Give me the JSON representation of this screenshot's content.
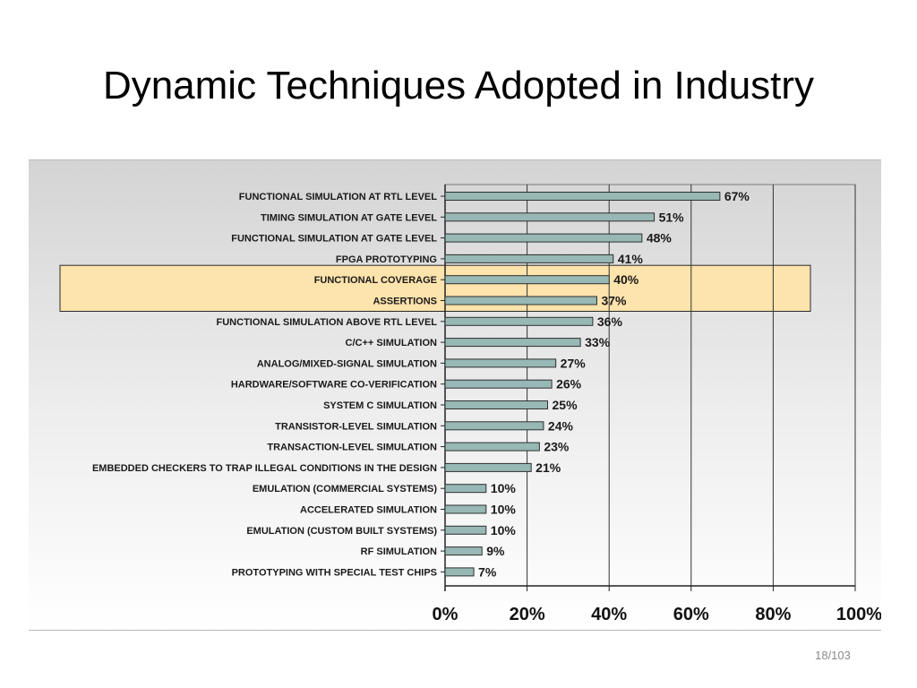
{
  "slide": {
    "title": "Dynamic Techniques Adopted in Industry",
    "page_number": "18/103"
  },
  "colors": {
    "bar_fill": "#97b8b4",
    "bar_stroke": "#2f2f2f",
    "highlight": "#fde3ac",
    "highlight_border": "#2a2a2a",
    "gridline": "#333333"
  },
  "chart_data": {
    "type": "bar",
    "orientation": "horizontal",
    "categories": [
      "FUNCTIONAL SIMULATION AT RTL LEVEL",
      "TIMING SIMULATION AT GATE LEVEL",
      "FUNCTIONAL SIMULATION AT GATE LEVEL",
      "FPGA PROTOTYPING",
      "FUNCTIONAL COVERAGE",
      "ASSERTIONS",
      "FUNCTIONAL SIMULATION ABOVE RTL LEVEL",
      "C/C++ SIMULATION",
      "ANALOG/MIXED-SIGNAL SIMULATION",
      "HARDWARE/SOFTWARE CO-VERIFICATION",
      "SYSTEM C SIMULATION",
      "TRANSISTOR-LEVEL SIMULATION",
      "TRANSACTION-LEVEL SIMULATION",
      "EMBEDDED CHECKERS TO TRAP ILLEGAL CONDITIONS IN THE DESIGN",
      "EMULATION (COMMERCIAL SYSTEMS)",
      "ACCELERATED SIMULATION",
      "EMULATION (CUSTOM BUILT SYSTEMS)",
      "RF SIMULATION",
      "PROTOTYPING WITH SPECIAL TEST CHIPS"
    ],
    "values": [
      67,
      51,
      48,
      41,
      40,
      37,
      36,
      33,
      27,
      26,
      25,
      24,
      23,
      21,
      10,
      10,
      10,
      9,
      7
    ],
    "value_labels": [
      "67%",
      "51%",
      "48%",
      "41%",
      "40%",
      "37%",
      "36%",
      "33%",
      "27%",
      "26%",
      "25%",
      "24%",
      "23%",
      "21%",
      "10%",
      "10%",
      "10%",
      "9%",
      "7%"
    ],
    "highlighted_categories": [
      "FUNCTIONAL COVERAGE",
      "ASSERTIONS"
    ],
    "xlim": [
      0,
      100
    ],
    "xticks": [
      0,
      20,
      40,
      60,
      80,
      100
    ],
    "xtick_labels": [
      "0%",
      "20%",
      "40%",
      "60%",
      "80%",
      "100%"
    ],
    "grid": true,
    "legend": "none"
  }
}
